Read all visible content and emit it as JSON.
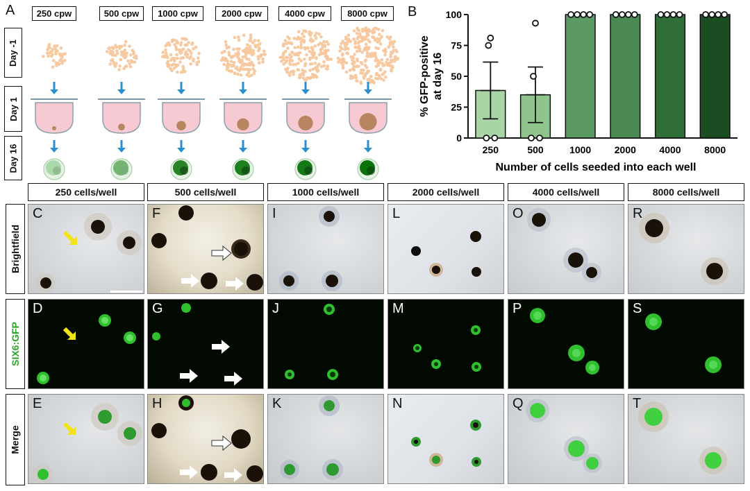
{
  "panel_letters": {
    "A": "A",
    "B": "B",
    "C": "C",
    "D": "D",
    "E": "E",
    "F": "F",
    "G": "G",
    "H": "H",
    "I": "I",
    "J": "J",
    "K": "K",
    "L": "L",
    "M": "M",
    "N": "N",
    "O": "O",
    "P": "P",
    "Q": "Q",
    "R": "R",
    "S": "S",
    "T": "T"
  },
  "schematic": {
    "cpw_labels": [
      "250 cpw",
      "500 cpw",
      "1000 cpw",
      "2000 cpw",
      "4000 cpw",
      "8000 cpw"
    ],
    "day_labels": [
      "Day -1",
      "Day 1",
      "Day 16"
    ],
    "arrow_color": "#2a8fd0",
    "cell_color": "#f7c9a0",
    "medium_color": "#f7c9d2",
    "gfp_levels": [
      0.15,
      0.45,
      0.85,
      0.9,
      0.95,
      1.0
    ]
  },
  "chart_data": {
    "type": "bar",
    "categories": [
      "250",
      "500",
      "1000",
      "2000",
      "4000",
      "8000"
    ],
    "values": [
      38.5,
      35,
      100,
      100,
      100,
      100
    ],
    "error": [
      23,
      22.5,
      0,
      0,
      0,
      0
    ],
    "points": [
      [
        81,
        75,
        0,
        0
      ],
      [
        93,
        50,
        0,
        0
      ],
      [
        100,
        100,
        100,
        100
      ],
      [
        100,
        100,
        100,
        100
      ],
      [
        100,
        100,
        100,
        100
      ],
      [
        100,
        100,
        100,
        100
      ]
    ],
    "bar_colors": [
      "#a8d4a6",
      "#8fc48c",
      "#5b9a62",
      "#4a8a52",
      "#2f6e37",
      "#1b4d22"
    ],
    "ylabel": "% GFP-positive at day 16",
    "ylabel_lines": [
      "% GFP-positive",
      "at day 16"
    ],
    "xlabel": "Number of cells seeded into each well",
    "yticks": [
      0,
      25,
      50,
      75,
      100
    ],
    "ylim": [
      0,
      100
    ]
  },
  "grid": {
    "columns": [
      "250 cells/well",
      "500 cells/well",
      "1000 cells/well",
      "2000 cells/well",
      "4000 cells/well",
      "8000 cells/well"
    ],
    "rows": [
      "Brightfield",
      "SIX6:GFP",
      "Merge"
    ],
    "row_label_colors": [
      "#111111",
      "#2aa52a",
      "#111111"
    ]
  }
}
